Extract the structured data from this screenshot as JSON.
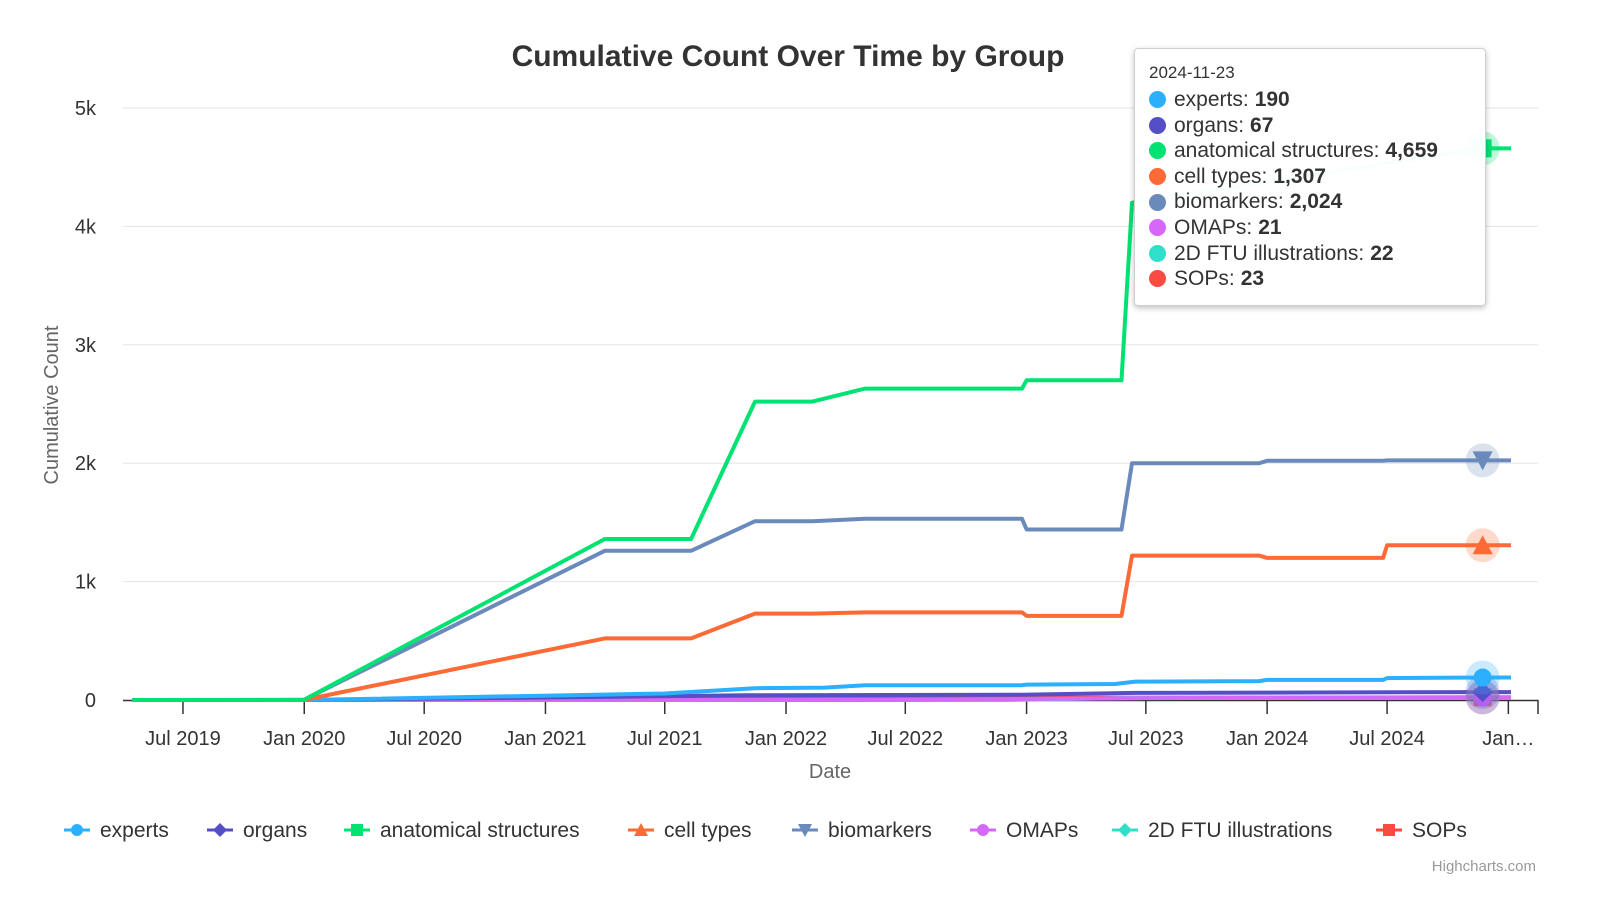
{
  "chart_data": {
    "type": "line",
    "title": "Cumulative Count Over Time by Group",
    "xlabel": "Date",
    "ylabel": "Cumulative Count",
    "ylim": [
      0,
      5000
    ],
    "yticks": [
      "0",
      "1k",
      "2k",
      "3k",
      "4k",
      "5k"
    ],
    "ytick_values": [
      0,
      1000,
      2000,
      3000,
      4000,
      5000
    ],
    "xticks": [
      "Jul 2019",
      "Jan 2020",
      "Jul 2020",
      "Jan 2021",
      "Jul 2021",
      "Jan 2022",
      "Jul 2022",
      "Jan 2023",
      "Jul 2023",
      "Jan 2024",
      "Jul 2024",
      "Jan…"
    ],
    "xtick_dates": [
      "2019-07-01",
      "2020-01-01",
      "2020-07-01",
      "2021-01-01",
      "2021-07-01",
      "2022-01-01",
      "2022-07-01",
      "2023-01-01",
      "2023-07-01",
      "2024-01-01",
      "2024-07-01",
      "2025-01-01"
    ],
    "xlim": [
      "2019-04-01",
      "2025-02-15"
    ],
    "grid": "horizontal",
    "legend_position": "bottom",
    "credit": "Highcharts.com",
    "series": [
      {
        "name": "experts",
        "color": "#2caffe",
        "marker": "circle",
        "points": [
          [
            "2019-04-15",
            0
          ],
          [
            "2019-12-31",
            0
          ],
          [
            "2021-07-01",
            55
          ],
          [
            "2021-11-15",
            100
          ],
          [
            "2022-03-01",
            105
          ],
          [
            "2022-05-01",
            125
          ],
          [
            "2022-12-25",
            125
          ],
          [
            "2023-01-01",
            130
          ],
          [
            "2023-05-15",
            135
          ],
          [
            "2023-06-15",
            155
          ],
          [
            "2023-12-20",
            160
          ],
          [
            "2024-01-01",
            170
          ],
          [
            "2024-06-25",
            170
          ],
          [
            "2024-07-01",
            185
          ],
          [
            "2024-11-23",
            190
          ],
          [
            "2025-01-05",
            190
          ]
        ]
      },
      {
        "name": "organs",
        "color": "#544fc5",
        "marker": "diamond",
        "points": [
          [
            "2019-04-15",
            0
          ],
          [
            "2019-12-31",
            0
          ],
          [
            "2021-11-01",
            40
          ],
          [
            "2022-12-25",
            45
          ],
          [
            "2023-06-15",
            60
          ],
          [
            "2024-11-23",
            67
          ],
          [
            "2025-01-05",
            67
          ]
        ]
      },
      {
        "name": "anatomical structures",
        "color": "#00e272",
        "marker": "square",
        "points": [
          [
            "2019-04-15",
            0
          ],
          [
            "2019-12-31",
            0
          ],
          [
            "2021-04-01",
            1360
          ],
          [
            "2021-08-10",
            1360
          ],
          [
            "2021-11-15",
            2520
          ],
          [
            "2022-02-10",
            2520
          ],
          [
            "2022-05-01",
            2630
          ],
          [
            "2022-12-25",
            2630
          ],
          [
            "2023-01-01",
            2700
          ],
          [
            "2023-05-25",
            2700
          ],
          [
            "2023-06-10",
            4200
          ],
          [
            "2024-11-23",
            4659
          ],
          [
            "2025-01-05",
            4659
          ]
        ]
      },
      {
        "name": "cell types",
        "color": "#fe6a35",
        "marker": "triangle",
        "points": [
          [
            "2019-04-15",
            0
          ],
          [
            "2019-12-31",
            0
          ],
          [
            "2021-04-01",
            520
          ],
          [
            "2021-08-10",
            520
          ],
          [
            "2021-11-15",
            730
          ],
          [
            "2022-02-10",
            730
          ],
          [
            "2022-05-01",
            740
          ],
          [
            "2022-12-25",
            740
          ],
          [
            "2023-01-01",
            710
          ],
          [
            "2023-05-25",
            710
          ],
          [
            "2023-06-10",
            1220
          ],
          [
            "2023-12-20",
            1220
          ],
          [
            "2024-01-01",
            1200
          ],
          [
            "2024-06-25",
            1200
          ],
          [
            "2024-07-01",
            1307
          ],
          [
            "2024-11-23",
            1307
          ],
          [
            "2025-01-05",
            1307
          ]
        ]
      },
      {
        "name": "biomarkers",
        "color": "#6b8abc",
        "marker": "triangle-down",
        "points": [
          [
            "2019-04-15",
            0
          ],
          [
            "2019-12-31",
            0
          ],
          [
            "2021-04-01",
            1260
          ],
          [
            "2021-08-10",
            1260
          ],
          [
            "2021-11-15",
            1510
          ],
          [
            "2022-02-10",
            1510
          ],
          [
            "2022-05-01",
            1530
          ],
          [
            "2022-12-25",
            1530
          ],
          [
            "2023-01-01",
            1440
          ],
          [
            "2023-05-25",
            1440
          ],
          [
            "2023-06-10",
            2000
          ],
          [
            "2023-12-20",
            2000
          ],
          [
            "2024-01-01",
            2020
          ],
          [
            "2024-06-25",
            2020
          ],
          [
            "2024-07-01",
            2024
          ],
          [
            "2024-11-23",
            2024
          ],
          [
            "2025-01-05",
            2024
          ]
        ]
      },
      {
        "name": "OMAPs",
        "color": "#d568fb",
        "marker": "circle",
        "points": [
          [
            "2019-04-15",
            0
          ],
          [
            "2022-06-01",
            0
          ],
          [
            "2023-06-15",
            15
          ],
          [
            "2024-11-23",
            21
          ],
          [
            "2025-01-05",
            21
          ]
        ]
      },
      {
        "name": "2D FTU illustrations",
        "color": "#2ee0ca",
        "marker": "diamond",
        "points": [
          [
            "2019-04-15",
            0
          ],
          [
            "2022-12-01",
            0
          ],
          [
            "2023-06-15",
            18
          ],
          [
            "2024-11-23",
            22
          ],
          [
            "2025-01-05",
            22
          ]
        ]
      },
      {
        "name": "SOPs",
        "color": "#fa4b42",
        "marker": "square",
        "points": [
          [
            "2019-04-15",
            0
          ],
          [
            "2021-01-01",
            5
          ],
          [
            "2022-06-01",
            15
          ],
          [
            "2023-06-15",
            20
          ],
          [
            "2024-11-23",
            23
          ],
          [
            "2025-01-05",
            23
          ]
        ]
      }
    ]
  },
  "tooltip": {
    "date": "2024-11-23",
    "rows": [
      {
        "label": "experts:",
        "value": "190",
        "color": "#2caffe"
      },
      {
        "label": "organs:",
        "value": "67",
        "color": "#544fc5"
      },
      {
        "label": "anatomical structures:",
        "value": "4,659",
        "color": "#00e272"
      },
      {
        "label": "cell types:",
        "value": "1,307",
        "color": "#fe6a35"
      },
      {
        "label": "biomarkers:",
        "value": "2,024",
        "color": "#6b8abc"
      },
      {
        "label": "OMAPs:",
        "value": "21",
        "color": "#d568fb"
      },
      {
        "label": "2D FTU illustrations:",
        "value": "22",
        "color": "#2ee0ca"
      },
      {
        "label": "SOPs:",
        "value": "23",
        "color": "#fa4b42"
      }
    ]
  }
}
